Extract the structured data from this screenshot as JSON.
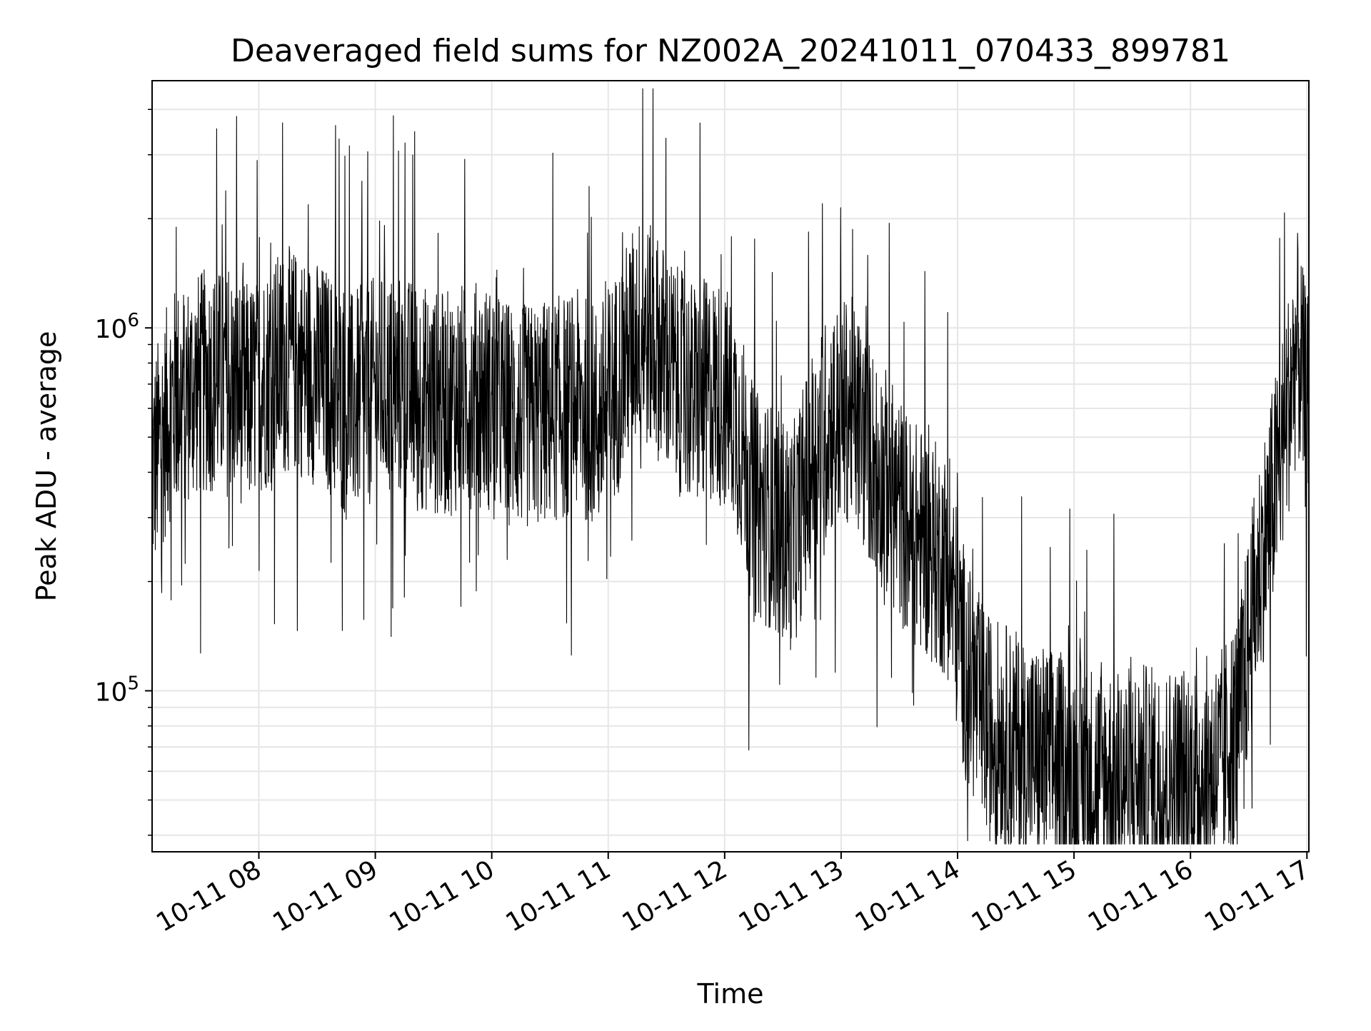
{
  "chart_data": {
    "type": "line",
    "title": "Deaveraged field sums for NZ002A_20241011_070433_899781",
    "xlabel": "Time",
    "ylabel": "Peak ADU - average",
    "xscale": "time",
    "yscale": "log",
    "xlim": [
      "2024-10-11 07:05",
      "2024-10-11 17:01"
    ],
    "ylim": [
      36000,
      4800000
    ],
    "grid": true,
    "legend": "none",
    "line_color": "#000000",
    "grid_color": "#e6e6e6",
    "xticks": [
      {
        "value": "2024-10-11 08:00",
        "label": "10-11 08"
      },
      {
        "value": "2024-10-11 09:00",
        "label": "10-11 09"
      },
      {
        "value": "2024-10-11 10:00",
        "label": "10-11 10"
      },
      {
        "value": "2024-10-11 11:00",
        "label": "10-11 11"
      },
      {
        "value": "2024-10-11 12:00",
        "label": "10-11 12"
      },
      {
        "value": "2024-10-11 13:00",
        "label": "10-11 13"
      },
      {
        "value": "2024-10-11 14:00",
        "label": "10-11 14"
      },
      {
        "value": "2024-10-11 15:00",
        "label": "10-11 15"
      },
      {
        "value": "2024-10-11 16:00",
        "label": "10-11 16"
      },
      {
        "value": "2024-10-11 17:00",
        "label": "10-11 17"
      }
    ],
    "yticks": [
      {
        "value": 100000,
        "base": "10",
        "exp": "5"
      },
      {
        "value": 1000000,
        "base": "10",
        "exp": "6"
      }
    ],
    "series": [
      {
        "x": [
          "07:05",
          "07:15",
          "07:25",
          "07:35",
          "07:45",
          "07:55",
          "08:05",
          "08:15",
          "08:25",
          "08:35",
          "08:45",
          "08:55",
          "09:05",
          "09:15",
          "09:25",
          "09:35",
          "09:45",
          "09:55",
          "10:05",
          "10:15",
          "10:25",
          "10:35",
          "10:45",
          "10:55",
          "11:05",
          "11:15",
          "11:25",
          "11:35",
          "11:45",
          "11:55",
          "12:05",
          "12:15",
          "12:25",
          "12:35",
          "12:45",
          "12:55",
          "13:05",
          "13:15",
          "13:25",
          "13:35",
          "13:45",
          "13:55",
          "14:05",
          "14:15",
          "14:25",
          "14:35",
          "14:45",
          "14:55",
          "15:05",
          "15:15",
          "15:25",
          "15:35",
          "15:45",
          "15:55",
          "16:05",
          "16:15",
          "16:25",
          "16:35",
          "16:45",
          "16:55",
          "17:00"
        ],
        "y": [
          400000,
          620000,
          680000,
          720000,
          700000,
          650000,
          750000,
          820000,
          780000,
          720000,
          600000,
          650000,
          700000,
          680000,
          640000,
          610000,
          650000,
          660000,
          600000,
          560000,
          580000,
          600000,
          620000,
          560000,
          720000,
          1000000,
          900000,
          720000,
          650000,
          680000,
          600000,
          330000,
          300000,
          260000,
          430000,
          560000,
          600000,
          450000,
          360000,
          280000,
          250000,
          220000,
          110000,
          80000,
          75000,
          68000,
          65000,
          62000,
          60000,
          58000,
          57000,
          58000,
          57000,
          58000,
          60000,
          62000,
          85000,
          210000,
          400000,
          900000,
          600000
        ]
      }
    ]
  }
}
